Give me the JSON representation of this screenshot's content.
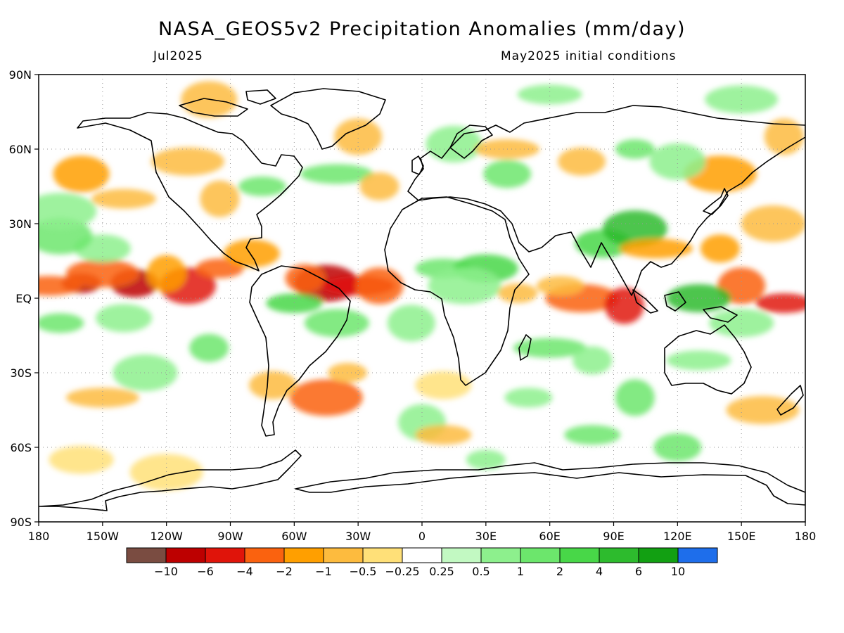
{
  "title": "NASA_GEOS5v2 Precipitation Anomalies (mm/day)",
  "subtitle_left": "Jul2025",
  "subtitle_right": "May2025 initial conditions",
  "axes": {
    "lat_labels": [
      "90N",
      "60N",
      "30N",
      "EQ",
      "30S",
      "60S",
      "90S"
    ],
    "lon_labels": [
      "180",
      "150W",
      "120W",
      "90W",
      "60W",
      "30W",
      "0",
      "30E",
      "60E",
      "90E",
      "120E",
      "150E",
      "180"
    ]
  },
  "colorbar": {
    "colors": [
      "#7a4c41",
      "#bd0000",
      "#e0140a",
      "#fa620f",
      "#ff9f00",
      "#fdbb3e",
      "#ffe078",
      "#ffffff",
      "#c2f9c2",
      "#8df08d",
      "#6ce66c",
      "#48d748",
      "#2dbb2d",
      "#12a012",
      "#1e6eeb"
    ],
    "labels": [
      "−10",
      "−6",
      "−4",
      "−2",
      "−1",
      "−0.5",
      "−0.25",
      "0.25",
      "0.5",
      "1",
      "2",
      "4",
      "6",
      "10"
    ]
  },
  "map": {
    "projection": "cylindrical equidistant, 180W to 180E, 90S to 90N",
    "anomaly_patches": [
      {
        "lon": -160,
        "lat": 6,
        "cat": 1
      },
      {
        "lon": -135,
        "lat": 6,
        "cat": 1
      },
      {
        "lon": -110,
        "lat": 5,
        "cat": 2
      },
      {
        "lon": -175,
        "lat": 5,
        "cat": 3
      },
      {
        "lon": -150,
        "lat": 10,
        "cat": 3
      },
      {
        "lon": -120,
        "lat": 10,
        "cat": 4
      },
      {
        "lon": -95,
        "lat": 12,
        "cat": 3
      },
      {
        "lon": -80,
        "lat": 18,
        "cat": 4
      },
      {
        "lon": -45,
        "lat": 6,
        "cat": 1
      },
      {
        "lon": -30,
        "lat": 5,
        "cat": 2
      },
      {
        "lon": -55,
        "lat": 8,
        "cat": 3
      },
      {
        "lon": -20,
        "lat": 5,
        "cat": 3
      },
      {
        "lon": -60,
        "lat": -2,
        "cat": 11
      },
      {
        "lon": -40,
        "lat": -10,
        "cat": 10
      },
      {
        "lon": -45,
        "lat": -40,
        "cat": 3
      },
      {
        "lon": -35,
        "lat": -30,
        "cat": 5
      },
      {
        "lon": -70,
        "lat": -35,
        "cat": 5
      },
      {
        "lon": -160,
        "lat": 50,
        "cat": 4
      },
      {
        "lon": -140,
        "lat": 40,
        "cat": 5
      },
      {
        "lon": -110,
        "lat": 55,
        "cat": 5
      },
      {
        "lon": -95,
        "lat": 40,
        "cat": 5
      },
      {
        "lon": -75,
        "lat": 45,
        "cat": 10
      },
      {
        "lon": -150,
        "lat": 20,
        "cat": 9
      },
      {
        "lon": -170,
        "lat": 25,
        "cat": 10
      },
      {
        "lon": -40,
        "lat": 50,
        "cat": 10
      },
      {
        "lon": -20,
        "lat": 45,
        "cat": 5
      },
      {
        "lon": -30,
        "lat": 65,
        "cat": 5
      },
      {
        "lon": 10,
        "lat": 12,
        "cat": 10
      },
      {
        "lon": 30,
        "lat": 12,
        "cat": 11
      },
      {
        "lon": 20,
        "lat": 5,
        "cat": 9
      },
      {
        "lon": 45,
        "lat": 2,
        "cat": 5
      },
      {
        "lon": 40,
        "lat": 50,
        "cat": 10
      },
      {
        "lon": 15,
        "lat": 62,
        "cat": 9
      },
      {
        "lon": 40,
        "lat": 60,
        "cat": 5
      },
      {
        "lon": 75,
        "lat": 0,
        "cat": 3
      },
      {
        "lon": 95,
        "lat": -3,
        "cat": 2
      },
      {
        "lon": 65,
        "lat": 5,
        "cat": 5
      },
      {
        "lon": 85,
        "lat": 22,
        "cat": 11
      },
      {
        "lon": 100,
        "lat": 28,
        "cat": 12
      },
      {
        "lon": 110,
        "lat": 20,
        "cat": 4
      },
      {
        "lon": 140,
        "lat": 20,
        "cat": 4
      },
      {
        "lon": 150,
        "lat": 5,
        "cat": 3
      },
      {
        "lon": 170,
        "lat": -2,
        "cat": 2
      },
      {
        "lon": 130,
        "lat": 0,
        "cat": 12
      },
      {
        "lon": 140,
        "lat": 50,
        "cat": 4
      },
      {
        "lon": 100,
        "lat": 60,
        "cat": 10
      },
      {
        "lon": 75,
        "lat": 55,
        "cat": 5
      },
      {
        "lon": 120,
        "lat": 55,
        "cat": 9
      },
      {
        "lon": 130,
        "lat": -25,
        "cat": 9
      },
      {
        "lon": 160,
        "lat": -45,
        "cat": 5
      },
      {
        "lon": 100,
        "lat": -40,
        "cat": 10
      },
      {
        "lon": 50,
        "lat": -40,
        "cat": 9
      },
      {
        "lon": 10,
        "lat": -35,
        "cat": 6
      },
      {
        "lon": -130,
        "lat": -30,
        "cat": 9
      },
      {
        "lon": -150,
        "lat": -40,
        "cat": 5
      },
      {
        "lon": -100,
        "lat": -20,
        "cat": 10
      },
      {
        "lon": 0,
        "lat": -50,
        "cat": 9
      },
      {
        "lon": 80,
        "lat": -55,
        "cat": 10
      },
      {
        "lon": -160,
        "lat": -65,
        "cat": 6
      },
      {
        "lon": -120,
        "lat": -70,
        "cat": 6
      },
      {
        "lon": 30,
        "lat": -65,
        "cat": 9
      },
      {
        "lon": 120,
        "lat": -60,
        "cat": 10
      },
      {
        "lon": -100,
        "lat": 80,
        "cat": 5
      },
      {
        "lon": 60,
        "lat": 82,
        "cat": 9
      },
      {
        "lon": 150,
        "lat": 80,
        "cat": 9
      },
      {
        "lon": 170,
        "lat": 65,
        "cat": 5
      },
      {
        "lon": -170,
        "lat": -10,
        "cat": 10
      },
      {
        "lon": -140,
        "lat": -8,
        "cat": 9
      },
      {
        "lon": 165,
        "lat": 30,
        "cat": 5
      },
      {
        "lon": 60,
        "lat": -20,
        "cat": 10
      },
      {
        "lon": 80,
        "lat": -25,
        "cat": 9
      },
      {
        "lon": -5,
        "lat": -10,
        "cat": 9
      },
      {
        "lon": 10,
        "lat": -55,
        "cat": 5
      },
      {
        "lon": 150,
        "lat": -10,
        "cat": 9
      },
      {
        "lon": -170,
        "lat": 35,
        "cat": 9
      }
    ]
  }
}
